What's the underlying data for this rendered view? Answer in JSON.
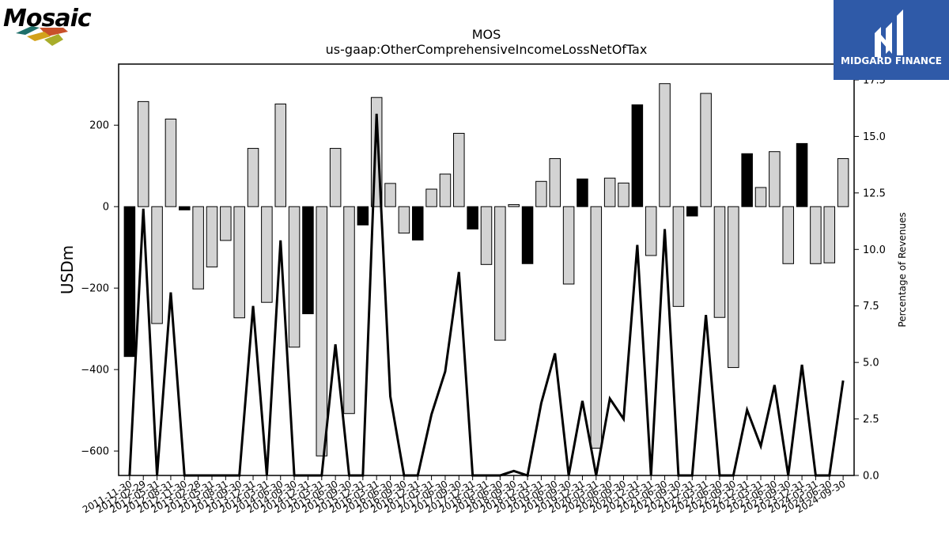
{
  "logos": {
    "left_text": "Mosaic",
    "right_text": "MIDGARD FINANCE"
  },
  "colors": {
    "bar_negative_growth": "#000000",
    "bar_positive_growth": "#d3d3d3",
    "line": "#000000",
    "right_logo_bg": "#2f5aa8"
  },
  "chart_data": {
    "type": "bar",
    "title": "MOS",
    "subtitle": "us-gaap:OtherComprehensiveIncomeLossNetOfTax",
    "ylabel": "USDm",
    "y2label": "Percentage of Revenues",
    "ylim": [
      -660,
      350
    ],
    "y2lim": [
      0,
      18.2
    ],
    "yticks": [
      -600,
      -400,
      -200,
      0,
      200
    ],
    "y2ticks": [
      0.0,
      2.5,
      5.0,
      7.5,
      10.0,
      12.5,
      15.0,
      17.5
    ],
    "categories": [
      "2011-11-30",
      "2012-02-29",
      "2012-05-31",
      "2012-08-31",
      "2012-11-30",
      "2013-02-28",
      "2013-05-31",
      "2013-08-31",
      "2013-09-30",
      "2013-12-31",
      "2014-03-31",
      "2014-06-30",
      "2014-09-30",
      "2014-12-31",
      "2015-03-31",
      "2015-06-30",
      "2015-09-30",
      "2015-12-31",
      "2016-03-31",
      "2016-06-30",
      "2016-09-30",
      "2016-12-31",
      "2017-03-31",
      "2017-06-30",
      "2017-09-30",
      "2017-12-31",
      "2018-03-31",
      "2018-06-30",
      "2018-09-30",
      "2018-12-31",
      "2019-03-31",
      "2019-06-30",
      "2019-09-30",
      "2019-12-31",
      "2020-03-31",
      "2020-06-30",
      "2020-09-30",
      "2020-12-31",
      "2021-03-31",
      "2021-06-30",
      "2021-09-30",
      "2021-12-31",
      "2022-03-31",
      "2022-06-30",
      "2022-09-30",
      "2022-12-31",
      "2023-03-31",
      "2023-06-30",
      "2023-09-30",
      "2023-12-31",
      "2024-03-31",
      "2024-06-30",
      "2024-09-30"
    ],
    "series": [
      {
        "kind": "bar",
        "values": [
          -368,
          258,
          -287,
          215,
          -8,
          -202,
          -148,
          -83,
          -273,
          143,
          -235,
          252,
          -345,
          -263,
          -612,
          143,
          -508,
          -45,
          268,
          57,
          -65,
          -82,
          43,
          80,
          180,
          -55,
          -142,
          -328,
          5,
          -140,
          62,
          118,
          -190,
          68,
          -593,
          70,
          58,
          250,
          -120,
          302,
          -245,
          -23,
          278,
          -272,
          -395,
          130,
          47,
          135,
          -140,
          155,
          -140,
          -138,
          118
        ],
        "fill": [
          "black",
          "light",
          "light",
          "light",
          "black",
          "light",
          "light",
          "light",
          "light",
          "light",
          "light",
          "light",
          "light",
          "black",
          "light",
          "light",
          "light",
          "black",
          "light",
          "light",
          "light",
          "black",
          "light",
          "light",
          "light",
          "black",
          "light",
          "light",
          "light",
          "black",
          "light",
          "light",
          "light",
          "black",
          "light",
          "light",
          "light",
          "black",
          "light",
          "light",
          "light",
          "black",
          "light",
          "light",
          "light",
          "black",
          "light",
          "light",
          "light",
          "black",
          "light",
          "light",
          "light"
        ]
      },
      {
        "kind": "line",
        "axis": "right",
        "values": [
          0.0,
          11.8,
          0.0,
          8.1,
          0.0,
          0.0,
          0.0,
          0.0,
          0.0,
          7.5,
          0.0,
          10.4,
          0.0,
          0.0,
          0.0,
          5.8,
          0.0,
          0.0,
          16.0,
          3.5,
          0.0,
          0.0,
          2.7,
          4.6,
          9.0,
          0.0,
          0.0,
          0.0,
          0.2,
          0.0,
          3.2,
          5.4,
          0.0,
          3.3,
          0.0,
          3.4,
          2.5,
          10.2,
          0.0,
          10.9,
          0.0,
          0.0,
          7.1,
          0.0,
          0.0,
          2.9,
          1.3,
          4.0,
          0.0,
          4.9,
          0.0,
          0.0,
          4.2
        ]
      }
    ],
    "grid": false
  }
}
